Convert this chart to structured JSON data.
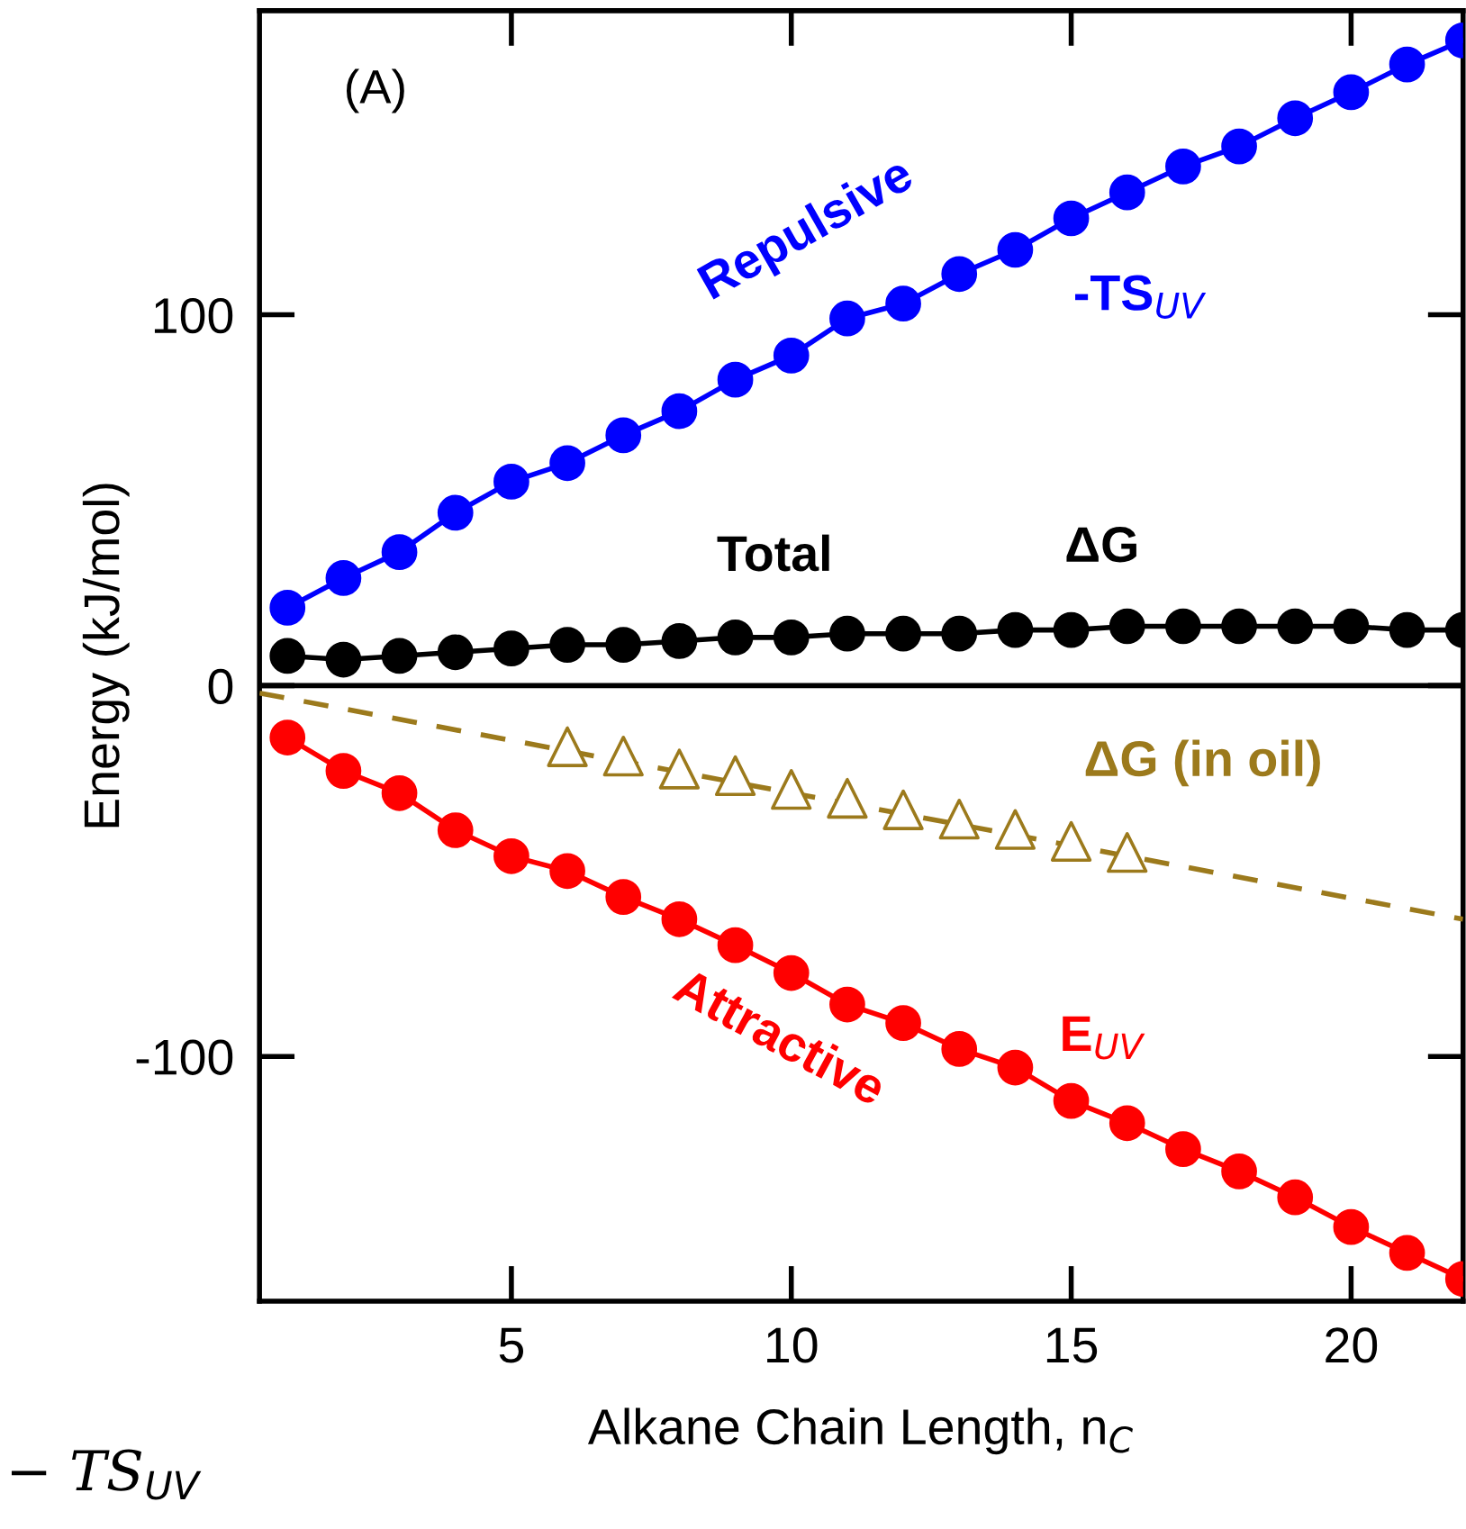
{
  "chart_data": {
    "type": "scatter",
    "xlabel": "Alkane Chain Length, n$_{C}$",
    "ylabel": "Energy (kJ/mol)",
    "x": [
      1,
      2,
      3,
      4,
      5,
      6,
      7,
      8,
      9,
      10,
      11,
      12,
      13,
      14,
      15,
      16,
      17,
      18,
      19,
      20,
      21,
      22
    ],
    "series": [
      {
        "type": "line",
        "color": "#0000ff",
        "marker": "circle",
        "values": [
          21,
          29,
          36,
          46.6,
          55,
          60,
          67.5,
          74,
          82.5,
          89,
          99,
          103,
          111,
          117.5,
          126,
          133,
          140,
          145.4,
          153,
          160,
          167.5,
          174
        ]
      },
      {
        "type": "line",
        "color": "#000000",
        "marker": "circle",
        "values": [
          8,
          7,
          8,
          9,
          10,
          11,
          11,
          12,
          13,
          13,
          14,
          14,
          14,
          15,
          15,
          16,
          16,
          16,
          16,
          16,
          15,
          15
        ]
      },
      {
        "type": "line",
        "color": "#ff0000",
        "marker": "circle",
        "values": [
          -14,
          -23,
          -29,
          -39,
          -46,
          -50,
          -57,
          -63,
          -70,
          -77.5,
          -86,
          -91,
          -98,
          -103,
          -112,
          -118,
          -125,
          -131,
          -138,
          -146,
          -153,
          -160
        ]
      },
      {
        "type": "line",
        "color": "#9c7a1c",
        "marker": "none",
        "line_style": "dashed",
        "x": [
          0.5,
          22
        ],
        "values": [
          -2,
          -63
        ]
      },
      {
        "color": "#9c7a1c",
        "marker": "triangle",
        "x": [
          6,
          7,
          8,
          9,
          10,
          11,
          12,
          13,
          14,
          15,
          16
        ],
        "values": [
          -16.5,
          -19,
          -22.5,
          -24.3,
          -28,
          -30.4,
          -33.5,
          -36,
          -38.8,
          -42,
          -45
        ]
      }
    ],
    "xlim": [
      0.5,
      22
    ],
    "ylim": [
      -166,
      182
    ],
    "xticks": [
      5,
      10,
      15,
      20
    ],
    "yticks": [
      -100,
      0,
      100
    ],
    "ref_lines": [
      {
        "axis": "y",
        "value": 0,
        "color": "#000000"
      }
    ],
    "grid": false,
    "legend": false,
    "annotations": [
      "Repulsive",
      "-TS$_{UV}$",
      "Total",
      "ΔG",
      "ΔG (in oil)",
      "Attractive",
      "E$_{UV}$",
      "(A)",
      "− TS$_{UV}$"
    ]
  }
}
